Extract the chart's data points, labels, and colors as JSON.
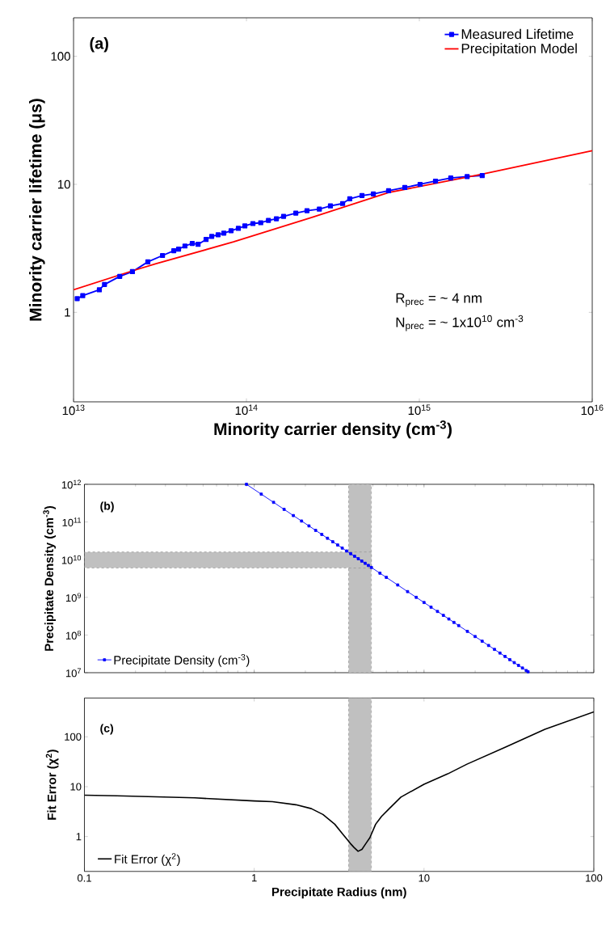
{
  "chart_data": [
    {
      "type": "line",
      "xlabel": "Minority carrier density (cm$^{-3}$)",
      "ylabel": "Minority carrier lifetime (μs)",
      "log": "xy",
      "legend": "top right",
      "xlim": [
        10000000000000.0,
        1e+16
      ],
      "ylim": [
        0.2,
        200
      ],
      "xticks": [
        {
          "value": 10000000000000.0,
          "label": "10$^{13}$"
        },
        {
          "value": 100000000000000.0,
          "label": "10$^{14}$"
        },
        {
          "value": 1000000000000000.0,
          "label": "10$^{15}$"
        },
        {
          "value": 1e+16,
          "label": "10$^{16}$"
        }
      ],
      "yticks": [
        1,
        10,
        100
      ],
      "annotations": [
        "(a)",
        "R$_{prec}$ = ~ 4 nm",
        "N$_{prec}$ = ~ 1x10$^{10}$ cm$^{-3}$"
      ],
      "series": [
        {
          "name": "Measured Lifetime",
          "color": "#0000ff",
          "marker": "square",
          "x": [
            10500000000000.0,
            11300000000000.0,
            14100000000000.0,
            15100000000000.0,
            18500000000000.0,
            21900000000000.0,
            26900000000000.0,
            32700000000000.0,
            38000000000000.0,
            40500000000000.0,
            44100000000000.0,
            48600000000000.0,
            52500000000000.0,
            58400000000000.0,
            63000000000000.0,
            68600000000000.0,
            74000000000000.0,
            81500000000000.0,
            89800000000000.0,
            97900000000000.0,
            109000000000000.0,
            121000000000000.0,
            134000000000000.0,
            149000000000000.0,
            164000000000000.0,
            193000000000000.0,
            224000000000000.0,
            264000000000000.0,
            306000000000000.0,
            360000000000000.0,
            396000000000000.0,
            466000000000000.0,
            542000000000000.0,
            664000000000000.0,
            824000000000000.0,
            1010000000000000.0,
            1240000000000000.0,
            1520000000000000.0,
            1890000000000000.0,
            2310000000000000.0
          ],
          "values": [
            1.28,
            1.35,
            1.5,
            1.65,
            1.91,
            2.08,
            2.48,
            2.78,
            3.03,
            3.12,
            3.3,
            3.45,
            3.4,
            3.71,
            3.92,
            4.04,
            4.16,
            4.34,
            4.53,
            4.73,
            4.94,
            5.01,
            5.23,
            5.38,
            5.62,
            5.96,
            6.22,
            6.4,
            6.78,
            7.08,
            7.72,
            8.18,
            8.41,
            8.91,
            9.44,
            10.0,
            10.6,
            11.2,
            11.5,
            11.7
          ]
        },
        {
          "name": "Precipitation Model",
          "color": "#ff0000",
          "x": [
            10000000000000.0,
            21900000000000.0,
            30000000000000.0,
            84100000000000.0,
            237000000000000.0,
            664000000000000.0,
            2310000000000000.0,
            1e+16
          ],
          "values": [
            1.5,
            2.11,
            2.4,
            3.55,
            5.5,
            8.62,
            12.0,
            18.3
          ]
        }
      ]
    },
    {
      "type": "line",
      "ylabel": "Precipitate Density (cm$^{-3}$)",
      "log": "xy",
      "legend": "bottom left",
      "tick_labels": "y",
      "xlim": [
        0.1,
        100
      ],
      "ylim": [
        10000000.0,
        1000000000000.0
      ],
      "yticks": [
        {
          "value": 10000000.0,
          "label": "10$^{7}$"
        },
        {
          "value": 100000000.0,
          "label": "10$^{8}$"
        },
        {
          "value": 1000000000.0,
          "label": "10$^{9}$"
        },
        {
          "value": 10000000000.0,
          "label": "10$^{10}$"
        },
        {
          "value": 100000000000.0,
          "label": "10$^{11}$"
        },
        {
          "value": 1000000000000.0,
          "label": "10$^{12}$"
        }
      ],
      "annotations": [
        "(b)"
      ],
      "bands": [
        {
          "axis": "x",
          "from": 3.6,
          "to": 4.9,
          "color": "#c0c0c0"
        },
        {
          "axis": "y",
          "from": 6000000000.0,
          "to": 16000000000.0,
          "color": "#c0c0c0"
        }
      ],
      "series": [
        {
          "name": "Precipitate Density (cm$^{-3}$)",
          "color": "#0000ff",
          "marker": "square",
          "x": [
            0.9,
            1.1,
            1.3,
            1.5,
            1.7,
            1.9,
            2.1,
            2.3,
            2.5,
            2.7,
            2.9,
            3.1,
            3.3,
            3.5,
            3.7,
            3.9,
            4.1,
            4.3,
            4.5,
            4.7,
            4.9,
            5.5,
            6,
            7,
            8,
            9,
            10,
            11,
            12,
            13,
            14,
            15,
            16,
            18,
            20,
            22,
            24,
            26,
            28,
            30,
            32,
            34,
            36,
            38,
            40,
            41
          ],
          "values": [
            1000000000000.0,
            548000000000.0,
            332000000000.0,
            216000000000.0,
            148000000000.0,
            106000000000.0,
            78700000000.0,
            59900000000.0,
            46700000000.0,
            37000000000.0,
            29900000000.0,
            24500000000.0,
            20300000000.0,
            17000000000.0,
            14400000000.0,
            12300000000.0,
            10600000000.0,
            9170000000.0,
            8000000000.0,
            7020000000.0,
            6200000000.0,
            4380000000.0,
            3380000000.0,
            2130000000.0,
            1420000000.0,
            1000000000.0,
            729000000.0,
            548000000.0,
            422000000.0,
            332000000.0,
            266000000.0,
            216000000.0,
            178000000.0,
            125000000.0,
            91100000.0,
            68500000.0,
            52700000.0,
            41500000.0,
            33200000.0,
            27000000.0,
            22200000.0,
            18500000.0,
            15600000.0,
            13300000.0,
            11400000.0,
            10600000.0
          ]
        }
      ]
    },
    {
      "type": "line",
      "xlabel": "Precipitate Radius (nm)",
      "ylabel": "Fit Error (χ$^{2}$)",
      "log": "xy",
      "legend": "bottom left",
      "xlim": [
        0.1,
        100
      ],
      "ylim": [
        0.2,
        600
      ],
      "xticks": [
        0.1,
        1,
        10,
        100
      ],
      "yticks": [
        1,
        10,
        100
      ],
      "annotations": [
        "(c)"
      ],
      "bands": [
        {
          "axis": "x",
          "from": 3.6,
          "to": 4.9,
          "color": "#c0c0c0"
        }
      ],
      "series": [
        {
          "name": "Fit Error (χ$^{2}$)",
          "color": "#000000",
          "x": [
            0.1,
            0.155,
            0.446,
            1,
            1.28,
            1.76,
            2.17,
            2.54,
            2.98,
            3.31,
            3.68,
            3.87,
            4.09,
            4.31,
            4.55,
            4.8,
            5.19,
            5.62,
            6.24,
            7.31,
            10,
            13.8,
            17.9,
            30.4,
            51.5,
            100
          ],
          "values": [
            6.77,
            6.55,
            5.97,
            5.18,
            5.0,
            4.34,
            3.63,
            2.77,
            1.77,
            1.14,
            0.73,
            0.605,
            0.507,
            0.555,
            0.73,
            0.95,
            1.77,
            2.53,
            3.63,
            6.19,
            11.2,
            18.1,
            28.3,
            63,
            142,
            316
          ]
        }
      ]
    }
  ]
}
